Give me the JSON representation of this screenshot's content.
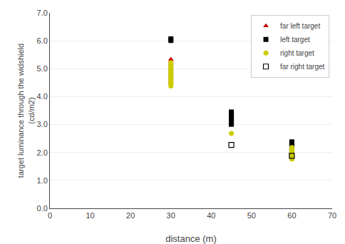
{
  "chart_data": {
    "type": "scatter",
    "xlabel": "distance (m)",
    "ylabel": "target luminance through the widshield\n(cd/m2)",
    "xlim": [
      0,
      70
    ],
    "ylim": [
      0.0,
      7.0
    ],
    "xticks": [
      0,
      10,
      20,
      30,
      40,
      50,
      60,
      70
    ],
    "yticks": [
      {
        "value": 0,
        "label": "0.0"
      },
      {
        "value": 1,
        "label": "1.0"
      },
      {
        "value": 2,
        "label": "2.0"
      },
      {
        "value": 3,
        "label": "3.0"
      },
      {
        "value": 4,
        "label": "4.0"
      },
      {
        "value": 5,
        "label": "5.0"
      },
      {
        "value": 6,
        "label": "6.0"
      },
      {
        "value": 7,
        "label": "7.0"
      }
    ],
    "grid": "y",
    "legend": "upper right",
    "series": [
      {
        "name": "far left target",
        "marker": "triangle-up",
        "color": "#cc0000",
        "x": [
          30,
          30,
          30,
          30,
          30,
          30,
          30,
          30,
          30,
          30,
          30,
          30,
          30
        ],
        "values": [
          5.33,
          5.26,
          5.19,
          5.12,
          5.05,
          4.98,
          4.91,
          4.84,
          4.77,
          4.7,
          4.63,
          4.56,
          4.49
        ]
      },
      {
        "name": "left target",
        "marker": "square",
        "color": "#000000",
        "x": [
          30,
          30,
          45,
          45,
          45,
          45,
          45,
          45,
          45,
          60,
          60,
          60,
          60,
          60,
          60,
          60
        ],
        "values": [
          6.07,
          6.01,
          3.45,
          3.38,
          3.3,
          3.22,
          3.15,
          3.08,
          3.01,
          2.38,
          2.3,
          2.23,
          2.16,
          2.09,
          2.02,
          1.95
        ]
      },
      {
        "name": "right target",
        "marker": "circle",
        "color": "#cccc00",
        "x": [
          30,
          30,
          30,
          30,
          30,
          30,
          30,
          30,
          30,
          30,
          30,
          30,
          30,
          45,
          60,
          60,
          60,
          60,
          60,
          60,
          60
        ],
        "values": [
          5.22,
          5.15,
          5.08,
          5.01,
          4.94,
          4.87,
          4.8,
          4.73,
          4.66,
          4.59,
          4.52,
          4.45,
          4.38,
          2.68,
          2.18,
          2.11,
          2.04,
          1.97,
          1.9,
          1.83,
          1.76
        ]
      },
      {
        "name": "far right target",
        "marker": "square-open",
        "color": "#000000",
        "x": [
          45,
          60
        ],
        "values": [
          2.27,
          1.88
        ]
      }
    ]
  }
}
